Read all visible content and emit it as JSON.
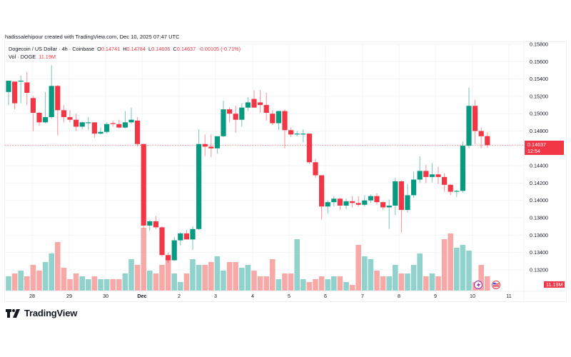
{
  "credit": "hadissalehipour created with TradingView.com, Dec 10, 2025 07:47 UTC",
  "legend": {
    "symbol": "Dogecoin / US Dollar · 4h · Coinbase",
    "o_label": "O",
    "o_value": "0.14741",
    "h_label": "H",
    "h_value": "0.14784",
    "l_label": "L",
    "l_value": "0.14606",
    "c_label": "C",
    "c_value": "0.14637",
    "change": "-0.00105 (-0.71%)",
    "vol_label": "Vol · DOGE",
    "vol_value": "11.19M"
  },
  "price_tag": {
    "price": "0.14637",
    "countdown": "12:54"
  },
  "volume_tag": "11.19M",
  "brand": "TradingView",
  "colors": {
    "up": "#089981",
    "down": "#f23645",
    "up_vol": "#92d2cc",
    "down_vol": "#f7a9a7",
    "grid": "#f2f3f5"
  },
  "chart_data": {
    "type": "candlestick",
    "title": "Dogecoin / US Dollar · 4h · Coinbase",
    "xlabel": "",
    "ylabel": "Price (USD)",
    "ylim": [
      0.131,
      0.158
    ],
    "y_ticks": [
      "0.15800",
      "0.15600",
      "0.15400",
      "0.15200",
      "0.15000",
      "0.14800",
      "0.14400",
      "0.14200",
      "0.14000",
      "0.13800",
      "0.13600",
      "0.13400",
      "0.13200"
    ],
    "x_ticks": [
      "28",
      "29",
      "30",
      "Dec",
      "2",
      "3",
      "4",
      "5",
      "6",
      "7",
      "8",
      "9",
      "10",
      "11"
    ],
    "grid": true,
    "last_price": 0.14637,
    "candles": [
      {
        "o": 0.1525,
        "h": 0.1536,
        "l": 0.151,
        "c": 0.1538
      },
      {
        "o": 0.1537,
        "h": 0.1537,
        "l": 0.1505,
        "c": 0.1512
      },
      {
        "o": 0.1537,
        "h": 0.1544,
        "l": 0.1512,
        "c": 0.1538
      },
      {
        "o": 0.1536,
        "h": 0.1548,
        "l": 0.151,
        "c": 0.1524
      },
      {
        "o": 0.1518,
        "h": 0.152,
        "l": 0.148,
        "c": 0.1501
      },
      {
        "o": 0.1501,
        "h": 0.1502,
        "l": 0.1486,
        "c": 0.149
      },
      {
        "o": 0.149,
        "h": 0.1525,
        "l": 0.1489,
        "c": 0.1496
      },
      {
        "o": 0.1496,
        "h": 0.1556,
        "l": 0.1494,
        "c": 0.1532
      },
      {
        "o": 0.1532,
        "h": 0.1533,
        "l": 0.1475,
        "c": 0.1504
      },
      {
        "o": 0.1504,
        "h": 0.151,
        "l": 0.149,
        "c": 0.1496
      },
      {
        "o": 0.1496,
        "h": 0.1504,
        "l": 0.149,
        "c": 0.1493
      },
      {
        "o": 0.1493,
        "h": 0.15,
        "l": 0.148,
        "c": 0.1485
      },
      {
        "o": 0.1485,
        "h": 0.1491,
        "l": 0.1482,
        "c": 0.149
      },
      {
        "o": 0.149,
        "h": 0.1496,
        "l": 0.1481,
        "c": 0.149
      },
      {
        "o": 0.149,
        "h": 0.149,
        "l": 0.1472,
        "c": 0.1477
      },
      {
        "o": 0.1477,
        "h": 0.1484,
        "l": 0.1476,
        "c": 0.1479
      },
      {
        "o": 0.1479,
        "h": 0.149,
        "l": 0.1477,
        "c": 0.1488
      },
      {
        "o": 0.1489,
        "h": 0.1492,
        "l": 0.1485,
        "c": 0.1488
      },
      {
        "o": 0.1488,
        "h": 0.1493,
        "l": 0.1483,
        "c": 0.1484
      },
      {
        "o": 0.1484,
        "h": 0.1503,
        "l": 0.1483,
        "c": 0.149
      },
      {
        "o": 0.149,
        "h": 0.1507,
        "l": 0.1488,
        "c": 0.1493
      },
      {
        "o": 0.1492,
        "h": 0.1496,
        "l": 0.1462,
        "c": 0.1465
      },
      {
        "o": 0.1465,
        "h": 0.1465,
        "l": 0.1368,
        "c": 0.1371
      },
      {
        "o": 0.1371,
        "h": 0.1377,
        "l": 0.1365,
        "c": 0.1376
      },
      {
        "o": 0.1376,
        "h": 0.1382,
        "l": 0.1367,
        "c": 0.1369
      },
      {
        "o": 0.1369,
        "h": 0.137,
        "l": 0.1335,
        "c": 0.1337
      },
      {
        "o": 0.1337,
        "h": 0.134,
        "l": 0.1328,
        "c": 0.1331
      },
      {
        "o": 0.1331,
        "h": 0.1358,
        "l": 0.133,
        "c": 0.1354
      },
      {
        "o": 0.1354,
        "h": 0.1363,
        "l": 0.1348,
        "c": 0.1362
      },
      {
        "o": 0.1362,
        "h": 0.1366,
        "l": 0.1356,
        "c": 0.1355
      },
      {
        "o": 0.1355,
        "h": 0.137,
        "l": 0.1343,
        "c": 0.1367
      },
      {
        "o": 0.1367,
        "h": 0.1482,
        "l": 0.1366,
        "c": 0.1465
      },
      {
        "o": 0.1465,
        "h": 0.1476,
        "l": 0.1451,
        "c": 0.1462
      },
      {
        "o": 0.1462,
        "h": 0.1476,
        "l": 0.145,
        "c": 0.146
      },
      {
        "o": 0.146,
        "h": 0.1472,
        "l": 0.1454,
        "c": 0.1474
      },
      {
        "o": 0.1474,
        "h": 0.1515,
        "l": 0.1473,
        "c": 0.1505
      },
      {
        "o": 0.1505,
        "h": 0.1507,
        "l": 0.149,
        "c": 0.15
      },
      {
        "o": 0.15,
        "h": 0.1509,
        "l": 0.1478,
        "c": 0.1493
      },
      {
        "o": 0.1493,
        "h": 0.1512,
        "l": 0.1485,
        "c": 0.1507
      },
      {
        "o": 0.1507,
        "h": 0.1519,
        "l": 0.1503,
        "c": 0.1513
      },
      {
        "o": 0.1517,
        "h": 0.1527,
        "l": 0.151,
        "c": 0.1507
      },
      {
        "o": 0.1513,
        "h": 0.1527,
        "l": 0.1501,
        "c": 0.151
      },
      {
        "o": 0.151,
        "h": 0.1524,
        "l": 0.1492,
        "c": 0.1501
      },
      {
        "o": 0.15,
        "h": 0.1504,
        "l": 0.1487,
        "c": 0.1489
      },
      {
        "o": 0.1489,
        "h": 0.1503,
        "l": 0.1481,
        "c": 0.1503
      },
      {
        "o": 0.1503,
        "h": 0.1505,
        "l": 0.146,
        "c": 0.1481
      },
      {
        "o": 0.1481,
        "h": 0.1484,
        "l": 0.1473,
        "c": 0.1476
      },
      {
        "o": 0.1476,
        "h": 0.148,
        "l": 0.1474,
        "c": 0.1477
      },
      {
        "o": 0.1477,
        "h": 0.1482,
        "l": 0.1467,
        "c": 0.1477
      },
      {
        "o": 0.1477,
        "h": 0.1477,
        "l": 0.1442,
        "c": 0.1444
      },
      {
        "o": 0.1444,
        "h": 0.1448,
        "l": 0.1426,
        "c": 0.1429
      },
      {
        "o": 0.1429,
        "h": 0.1429,
        "l": 0.1378,
        "c": 0.1393
      },
      {
        "o": 0.1393,
        "h": 0.14,
        "l": 0.1385,
        "c": 0.1398
      },
      {
        "o": 0.1398,
        "h": 0.1405,
        "l": 0.1393,
        "c": 0.1402
      },
      {
        "o": 0.1402,
        "h": 0.1403,
        "l": 0.1389,
        "c": 0.1394
      },
      {
        "o": 0.1394,
        "h": 0.1402,
        "l": 0.139,
        "c": 0.1399
      },
      {
        "o": 0.1399,
        "h": 0.1405,
        "l": 0.1392,
        "c": 0.1397
      },
      {
        "o": 0.1397,
        "h": 0.1405,
        "l": 0.1393,
        "c": 0.1395
      },
      {
        "o": 0.1395,
        "h": 0.1406,
        "l": 0.1393,
        "c": 0.14
      },
      {
        "o": 0.14,
        "h": 0.1407,
        "l": 0.1397,
        "c": 0.1405
      },
      {
        "o": 0.1405,
        "h": 0.1408,
        "l": 0.1395,
        "c": 0.1398
      },
      {
        "o": 0.1398,
        "h": 0.1399,
        "l": 0.1389,
        "c": 0.1392
      },
      {
        "o": 0.1392,
        "h": 0.1401,
        "l": 0.1367,
        "c": 0.1394
      },
      {
        "o": 0.1394,
        "h": 0.1426,
        "l": 0.1383,
        "c": 0.1422
      },
      {
        "o": 0.1422,
        "h": 0.1423,
        "l": 0.1363,
        "c": 0.1389
      },
      {
        "o": 0.1389,
        "h": 0.1419,
        "l": 0.1386,
        "c": 0.1406
      },
      {
        "o": 0.1406,
        "h": 0.1433,
        "l": 0.1403,
        "c": 0.1424
      },
      {
        "o": 0.1424,
        "h": 0.1451,
        "l": 0.142,
        "c": 0.1434
      },
      {
        "o": 0.1434,
        "h": 0.1441,
        "l": 0.142,
        "c": 0.1427
      },
      {
        "o": 0.1427,
        "h": 0.1443,
        "l": 0.1421,
        "c": 0.143
      },
      {
        "o": 0.143,
        "h": 0.1439,
        "l": 0.1419,
        "c": 0.1427
      },
      {
        "o": 0.1427,
        "h": 0.1431,
        "l": 0.141,
        "c": 0.1418
      },
      {
        "o": 0.1418,
        "h": 0.1419,
        "l": 0.1406,
        "c": 0.141
      },
      {
        "o": 0.141,
        "h": 0.1412,
        "l": 0.1404,
        "c": 0.1411
      },
      {
        "o": 0.1411,
        "h": 0.1468,
        "l": 0.1409,
        "c": 0.1463
      },
      {
        "o": 0.1463,
        "h": 0.153,
        "l": 0.146,
        "c": 0.1509
      },
      {
        "o": 0.1509,
        "h": 0.1516,
        "l": 0.1465,
        "c": 0.148
      },
      {
        "o": 0.148,
        "h": 0.1484,
        "l": 0.146,
        "c": 0.1474
      },
      {
        "o": 0.14741,
        "h": 0.14784,
        "l": 0.14606,
        "c": 0.14637
      }
    ],
    "volume": [
      5,
      6,
      7,
      5,
      9,
      7,
      10,
      13,
      17,
      8,
      4,
      6,
      5,
      4,
      5,
      4,
      4,
      4,
      4,
      6,
      11,
      9,
      22,
      7,
      6,
      9,
      12,
      6,
      3,
      6,
      11,
      9,
      9,
      10,
      12,
      7,
      10,
      10,
      8,
      9,
      7,
      5,
      5,
      11,
      4,
      6,
      6,
      18,
      4,
      3,
      4,
      5,
      4,
      5,
      5,
      3,
      2,
      16,
      12,
      11,
      7,
      5,
      5,
      9,
      6,
      6,
      9,
      13,
      5,
      6,
      5,
      18,
      20,
      15,
      16,
      14,
      3,
      9,
      5
    ]
  }
}
